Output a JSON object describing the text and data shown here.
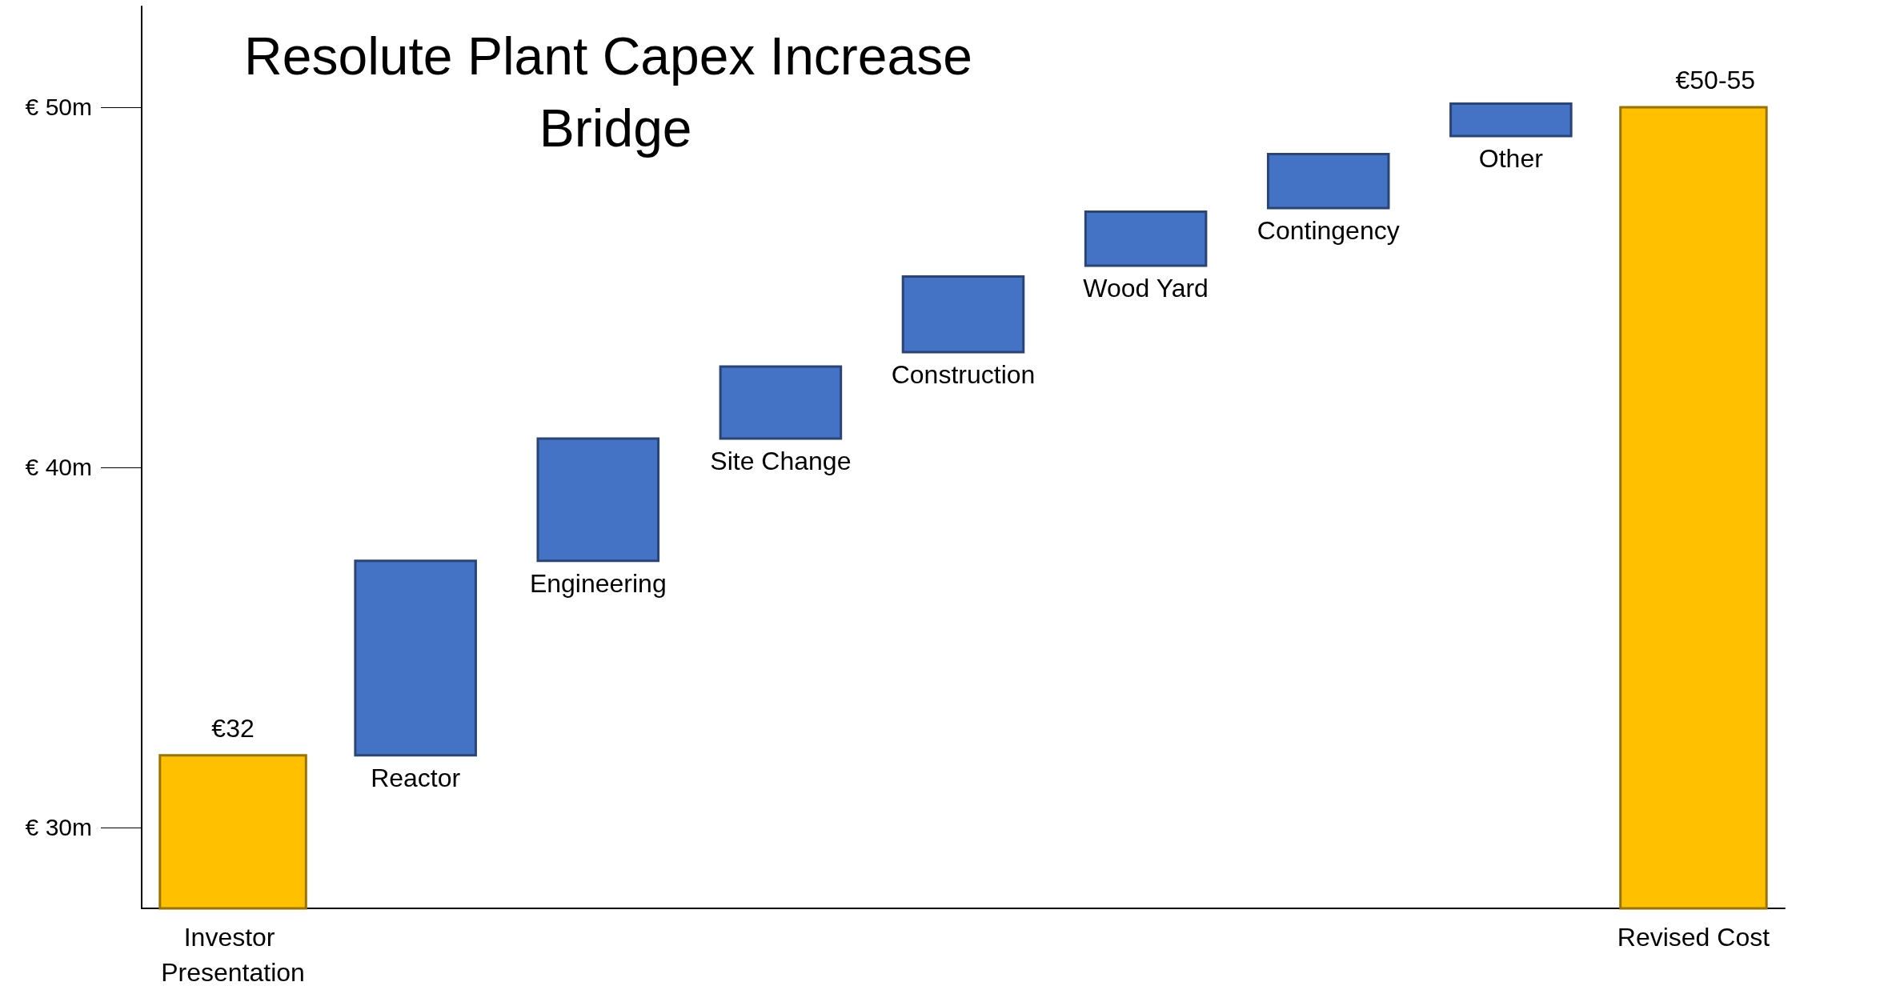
{
  "chart_data": {
    "type": "bar",
    "title": "Resolute Plant Capex Increase Bridge",
    "categories": [
      "Investor Presentation",
      "Reactor",
      "Engineering",
      "Site Change",
      "Construction",
      "Wood Yard",
      "Contingency",
      "Other",
      "Revised Cost"
    ],
    "values": [
      32,
      5.4,
      3.4,
      2.0,
      2.1,
      1.5,
      1.5,
      0.9,
      50
    ],
    "base": [
      null,
      32,
      37.4,
      40.8,
      43.2,
      45.6,
      47.2,
      49.2,
      null
    ],
    "colors": [
      "#ffc000",
      "#4472c4",
      "#4472c4",
      "#4472c4",
      "#4472c4",
      "#4472c4",
      "#4472c4",
      "#4472c4",
      "#ffc000"
    ],
    "value_labels": [
      "€32",
      null,
      null,
      null,
      null,
      null,
      null,
      null,
      "€50-55"
    ],
    "ylim": [
      27.75,
      52.8
    ],
    "yticks": [
      {
        "value": 30,
        "label": "€ 30m"
      },
      {
        "value": 40,
        "label": "€ 40m"
      },
      {
        "value": 50,
        "label": "€ 50m"
      }
    ],
    "grid": false
  }
}
